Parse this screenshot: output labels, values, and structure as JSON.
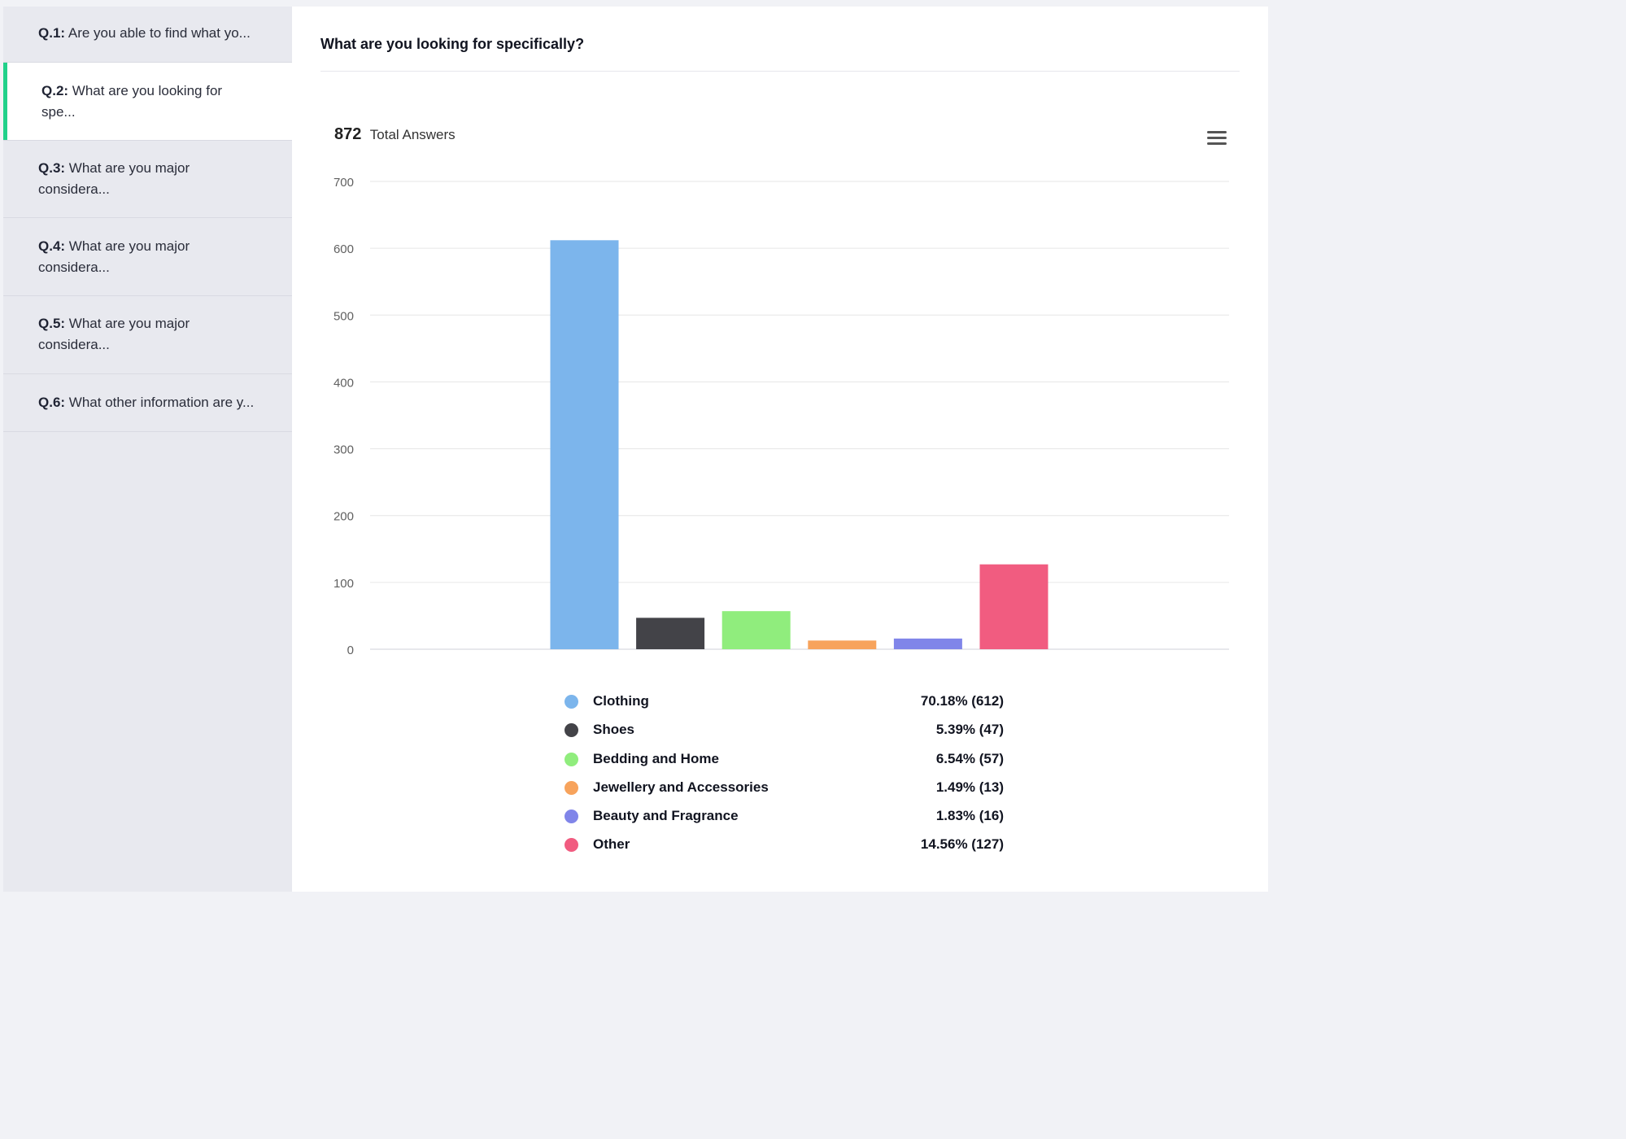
{
  "sidebar": {
    "items": [
      {
        "num": "Q.1:",
        "text": "Are you able to find what yo..."
      },
      {
        "num": "Q.2:",
        "text": "What are you looking for spe..."
      },
      {
        "num": "Q.3:",
        "text": "What are you major considera..."
      },
      {
        "num": "Q.4:",
        "text": "What are you major considera..."
      },
      {
        "num": "Q.5:",
        "text": "What are you major considera..."
      },
      {
        "num": "Q.6:",
        "text": "What other information are y..."
      }
    ],
    "active_index": 1,
    "accent_color": "#21d18a"
  },
  "main": {
    "question_title": "What are you looking for specifically?",
    "total_count": "872",
    "total_label": "Total Answers",
    "menu_icon": "hamburger-menu-icon"
  },
  "chart_data": {
    "type": "bar",
    "categories": [
      "Clothing",
      "Shoes",
      "Bedding and Home",
      "Jewellery and Accessories",
      "Beauty and Fragrance",
      "Other"
    ],
    "values": [
      612,
      47,
      57,
      13,
      16,
      127
    ],
    "percents": [
      "70.18% (612)",
      "5.39% (47)",
      "6.54% (57)",
      "1.49% (13)",
      "1.83% (16)",
      "14.56% (127)"
    ],
    "colors": [
      "#7cb5ec",
      "#434348",
      "#90ed7d",
      "#f7a35c",
      "#8085e9",
      "#f15c80"
    ],
    "ylim": [
      0,
      700
    ],
    "yticks": [
      0,
      100,
      200,
      300,
      400,
      500,
      600,
      700
    ],
    "grid": true,
    "legend_placement": "bottom"
  }
}
